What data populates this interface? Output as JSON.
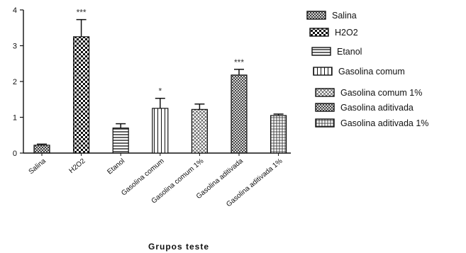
{
  "chart_data": {
    "type": "bar",
    "title": "",
    "xlabel": "Grupos teste",
    "ylabel": "",
    "ylim": [
      0,
      4
    ],
    "yticks": [
      0,
      1,
      2,
      3,
      4
    ],
    "grid": false,
    "legend_position": "right",
    "categories": [
      "Salina",
      "H2O2",
      "Etanol",
      "Gasolina comum",
      "Gasolina comum 1%",
      "Gasolina aditivada",
      "Gasolina aditivada 1%"
    ],
    "values": [
      0.22,
      3.25,
      0.7,
      1.25,
      1.22,
      2.18,
      1.05
    ],
    "errors": [
      0.03,
      0.48,
      0.12,
      0.28,
      0.15,
      0.16,
      0.04
    ],
    "significance": [
      "",
      "***",
      "",
      "*",
      "",
      "***",
      ""
    ],
    "patterns": [
      "crosshatch-fine",
      "checker",
      "horizontal",
      "vertical",
      "diagonal-cross",
      "diagonal-cross-dense",
      "grid"
    ],
    "legend": [
      "Salina",
      "H2O2",
      "Etanol",
      "Gasolina comum",
      "Gasolina comum 1%",
      "Gasolina aditivada",
      "Gasolina aditivada 1%"
    ]
  }
}
